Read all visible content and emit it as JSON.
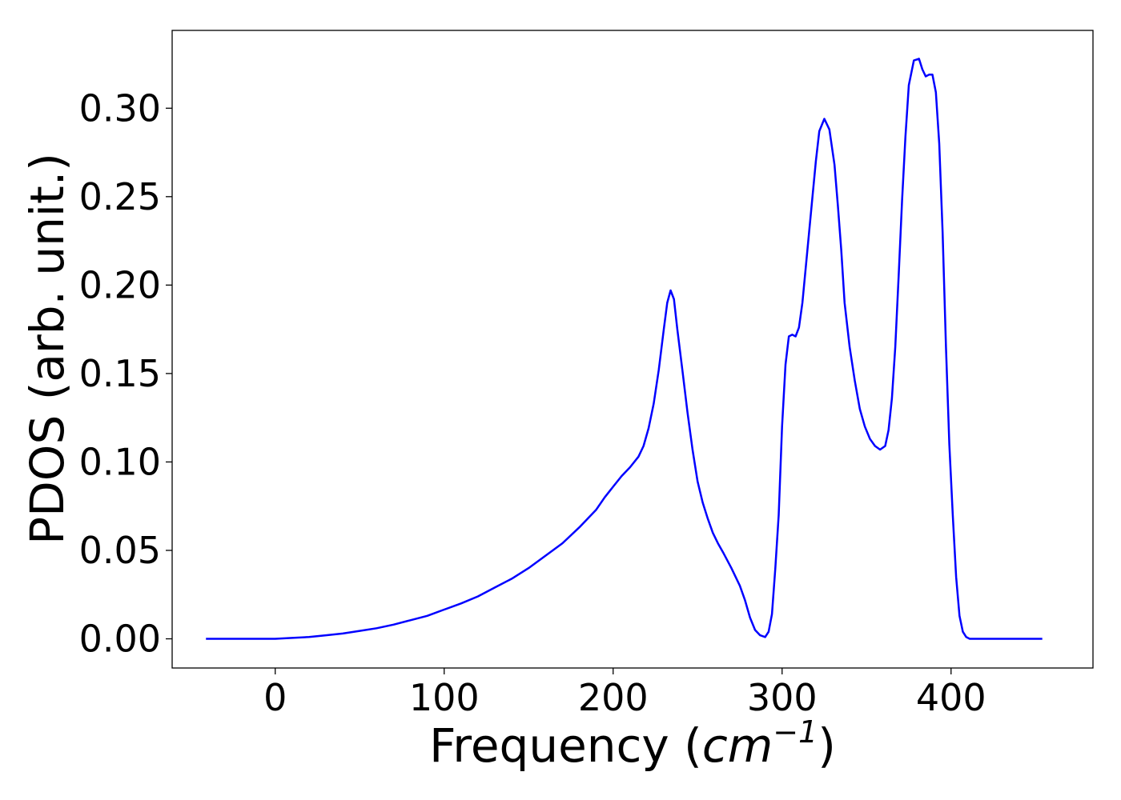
{
  "chart_data": {
    "type": "line",
    "xlabel": "Frequency (",
    "xlabel_unit_base": "cm",
    "xlabel_unit_exp": "−1",
    "xlabel_close": ")",
    "ylabel": "PDOS (arb. unit.)",
    "xlim": [
      -61,
      484
    ],
    "ylim": [
      -0.0165,
      0.344
    ],
    "xticks": [
      0,
      100,
      200,
      300,
      400
    ],
    "xtick_labels": [
      "0",
      "100",
      "200",
      "300",
      "400"
    ],
    "yticks": [
      0.0,
      0.05,
      0.1,
      0.15,
      0.2,
      0.25,
      0.3
    ],
    "ytick_labels": [
      "0.00",
      "0.05",
      "0.10",
      "0.15",
      "0.20",
      "0.25",
      "0.30"
    ],
    "grid": false,
    "color": "#0000ff",
    "series": [
      {
        "x": [
          -41,
          0,
          10,
          20,
          30,
          40,
          50,
          60,
          70,
          80,
          90,
          100,
          110,
          120,
          130,
          140,
          150,
          160,
          170,
          180,
          190,
          195,
          200,
          205,
          210,
          215,
          218,
          221,
          224,
          227,
          230,
          232,
          234,
          236,
          238,
          241,
          244,
          247,
          250,
          253,
          256,
          259,
          262,
          265,
          270,
          275,
          278,
          281,
          284,
          287,
          290,
          292,
          294,
          296,
          298,
          300,
          302,
          304,
          306,
          308,
          310,
          312,
          314,
          316,
          318,
          320,
          322,
          325,
          328,
          331,
          333,
          335,
          337,
          340,
          343,
          346,
          349,
          352,
          355,
          358,
          361,
          363,
          365,
          367,
          369,
          371,
          373,
          375,
          378,
          381,
          383,
          385,
          387,
          389,
          391,
          393,
          395,
          397,
          399,
          401,
          403,
          405,
          407,
          409,
          411,
          413,
          415,
          417,
          419,
          421,
          423,
          425,
          430,
          440,
          454
        ],
        "y": [
          0.0,
          0.0,
          0.0005,
          0.001,
          0.002,
          0.003,
          0.0045,
          0.006,
          0.008,
          0.0105,
          0.013,
          0.0165,
          0.02,
          0.024,
          0.029,
          0.034,
          0.04,
          0.047,
          0.054,
          0.063,
          0.073,
          0.08,
          0.086,
          0.092,
          0.097,
          0.103,
          0.109,
          0.119,
          0.133,
          0.152,
          0.175,
          0.19,
          0.197,
          0.192,
          0.175,
          0.152,
          0.128,
          0.107,
          0.089,
          0.077,
          0.068,
          0.06,
          0.054,
          0.049,
          0.04,
          0.03,
          0.022,
          0.012,
          0.005,
          0.002,
          0.001,
          0.004,
          0.014,
          0.04,
          0.07,
          0.12,
          0.155,
          0.171,
          0.172,
          0.171,
          0.176,
          0.19,
          0.21,
          0.23,
          0.25,
          0.27,
          0.287,
          0.294,
          0.288,
          0.268,
          0.245,
          0.22,
          0.19,
          0.165,
          0.146,
          0.13,
          0.12,
          0.113,
          0.109,
          0.107,
          0.109,
          0.118,
          0.136,
          0.165,
          0.205,
          0.248,
          0.284,
          0.313,
          0.327,
          0.328,
          0.322,
          0.318,
          0.319,
          0.319,
          0.309,
          0.28,
          0.23,
          0.165,
          0.11,
          0.07,
          0.035,
          0.013,
          0.004,
          0.001,
          0.0,
          0.0,
          0.0,
          0.0,
          0.0,
          0.0,
          0.0,
          0.0,
          0.0,
          0.0,
          0.0
        ]
      }
    ]
  }
}
